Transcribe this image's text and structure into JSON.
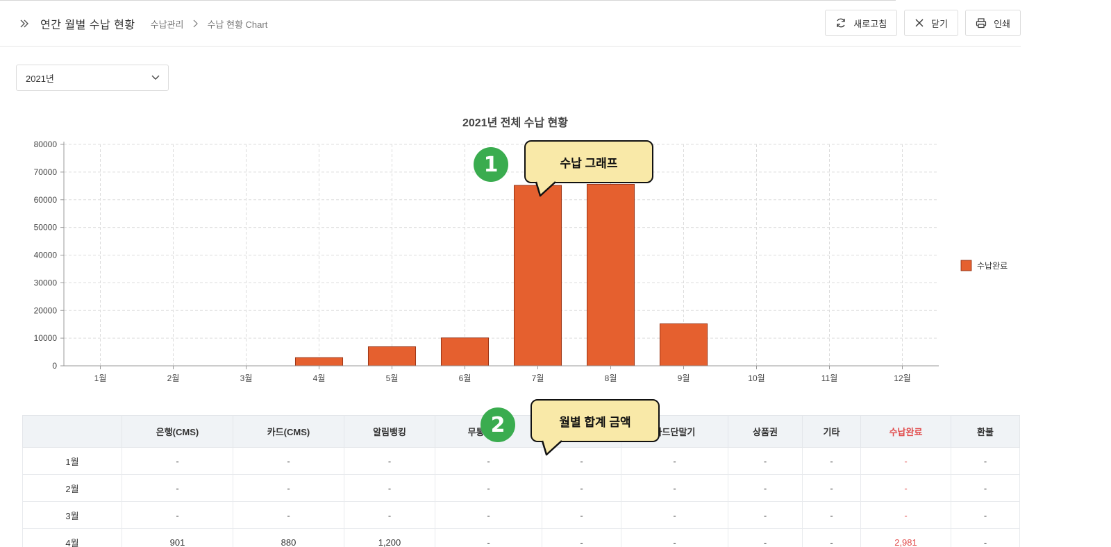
{
  "header": {
    "title": "연간 월별 수납 현황",
    "breadcrumb": [
      "수납관리",
      "수납 현황 Chart"
    ],
    "buttons": {
      "refresh": "새로고침",
      "close": "닫기",
      "print": "인쇄"
    }
  },
  "filter": {
    "year_selected": "2021년"
  },
  "chart_data": {
    "type": "bar",
    "title": "2021년 전체 수납 현황",
    "categories": [
      "1월",
      "2월",
      "3월",
      "4월",
      "5월",
      "6월",
      "7월",
      "8월",
      "9월",
      "10월",
      "11월",
      "12월"
    ],
    "series": [
      {
        "name": "수납완료",
        "values": [
          0,
          0,
          0,
          2981,
          6900,
          10100,
          65200,
          65600,
          15200,
          0,
          0,
          0
        ],
        "color": "#e5602f"
      }
    ],
    "ylim": [
      0,
      80000
    ],
    "yticks": [
      "0",
      "10000",
      "20000",
      "30000",
      "40000",
      "50000",
      "60000",
      "70000",
      "80000"
    ],
    "grid": true,
    "legend_position": "right"
  },
  "callouts": [
    {
      "number": "1",
      "text": "수납 그래프"
    },
    {
      "number": "2",
      "text": "월별 합계 금액"
    }
  ],
  "table": {
    "headers": [
      "",
      "은행(CMS)",
      "카드(CMS)",
      "알림뱅킹",
      "무통장입금",
      "",
      "카드단말기",
      "상품권",
      "기타",
      "수납완료",
      "환불"
    ],
    "rows": [
      [
        "1월",
        "-",
        "-",
        "-",
        "-",
        "-",
        "-",
        "-",
        "-",
        "-",
        "-"
      ],
      [
        "2월",
        "-",
        "-",
        "-",
        "-",
        "-",
        "-",
        "-",
        "-",
        "-",
        "-"
      ],
      [
        "3월",
        "-",
        "-",
        "-",
        "-",
        "-",
        "-",
        "-",
        "-",
        "-",
        "-"
      ],
      [
        "4월",
        "901",
        "880",
        "1,200",
        "-",
        "-",
        "-",
        "-",
        "-",
        "2,981",
        "-"
      ]
    ]
  }
}
